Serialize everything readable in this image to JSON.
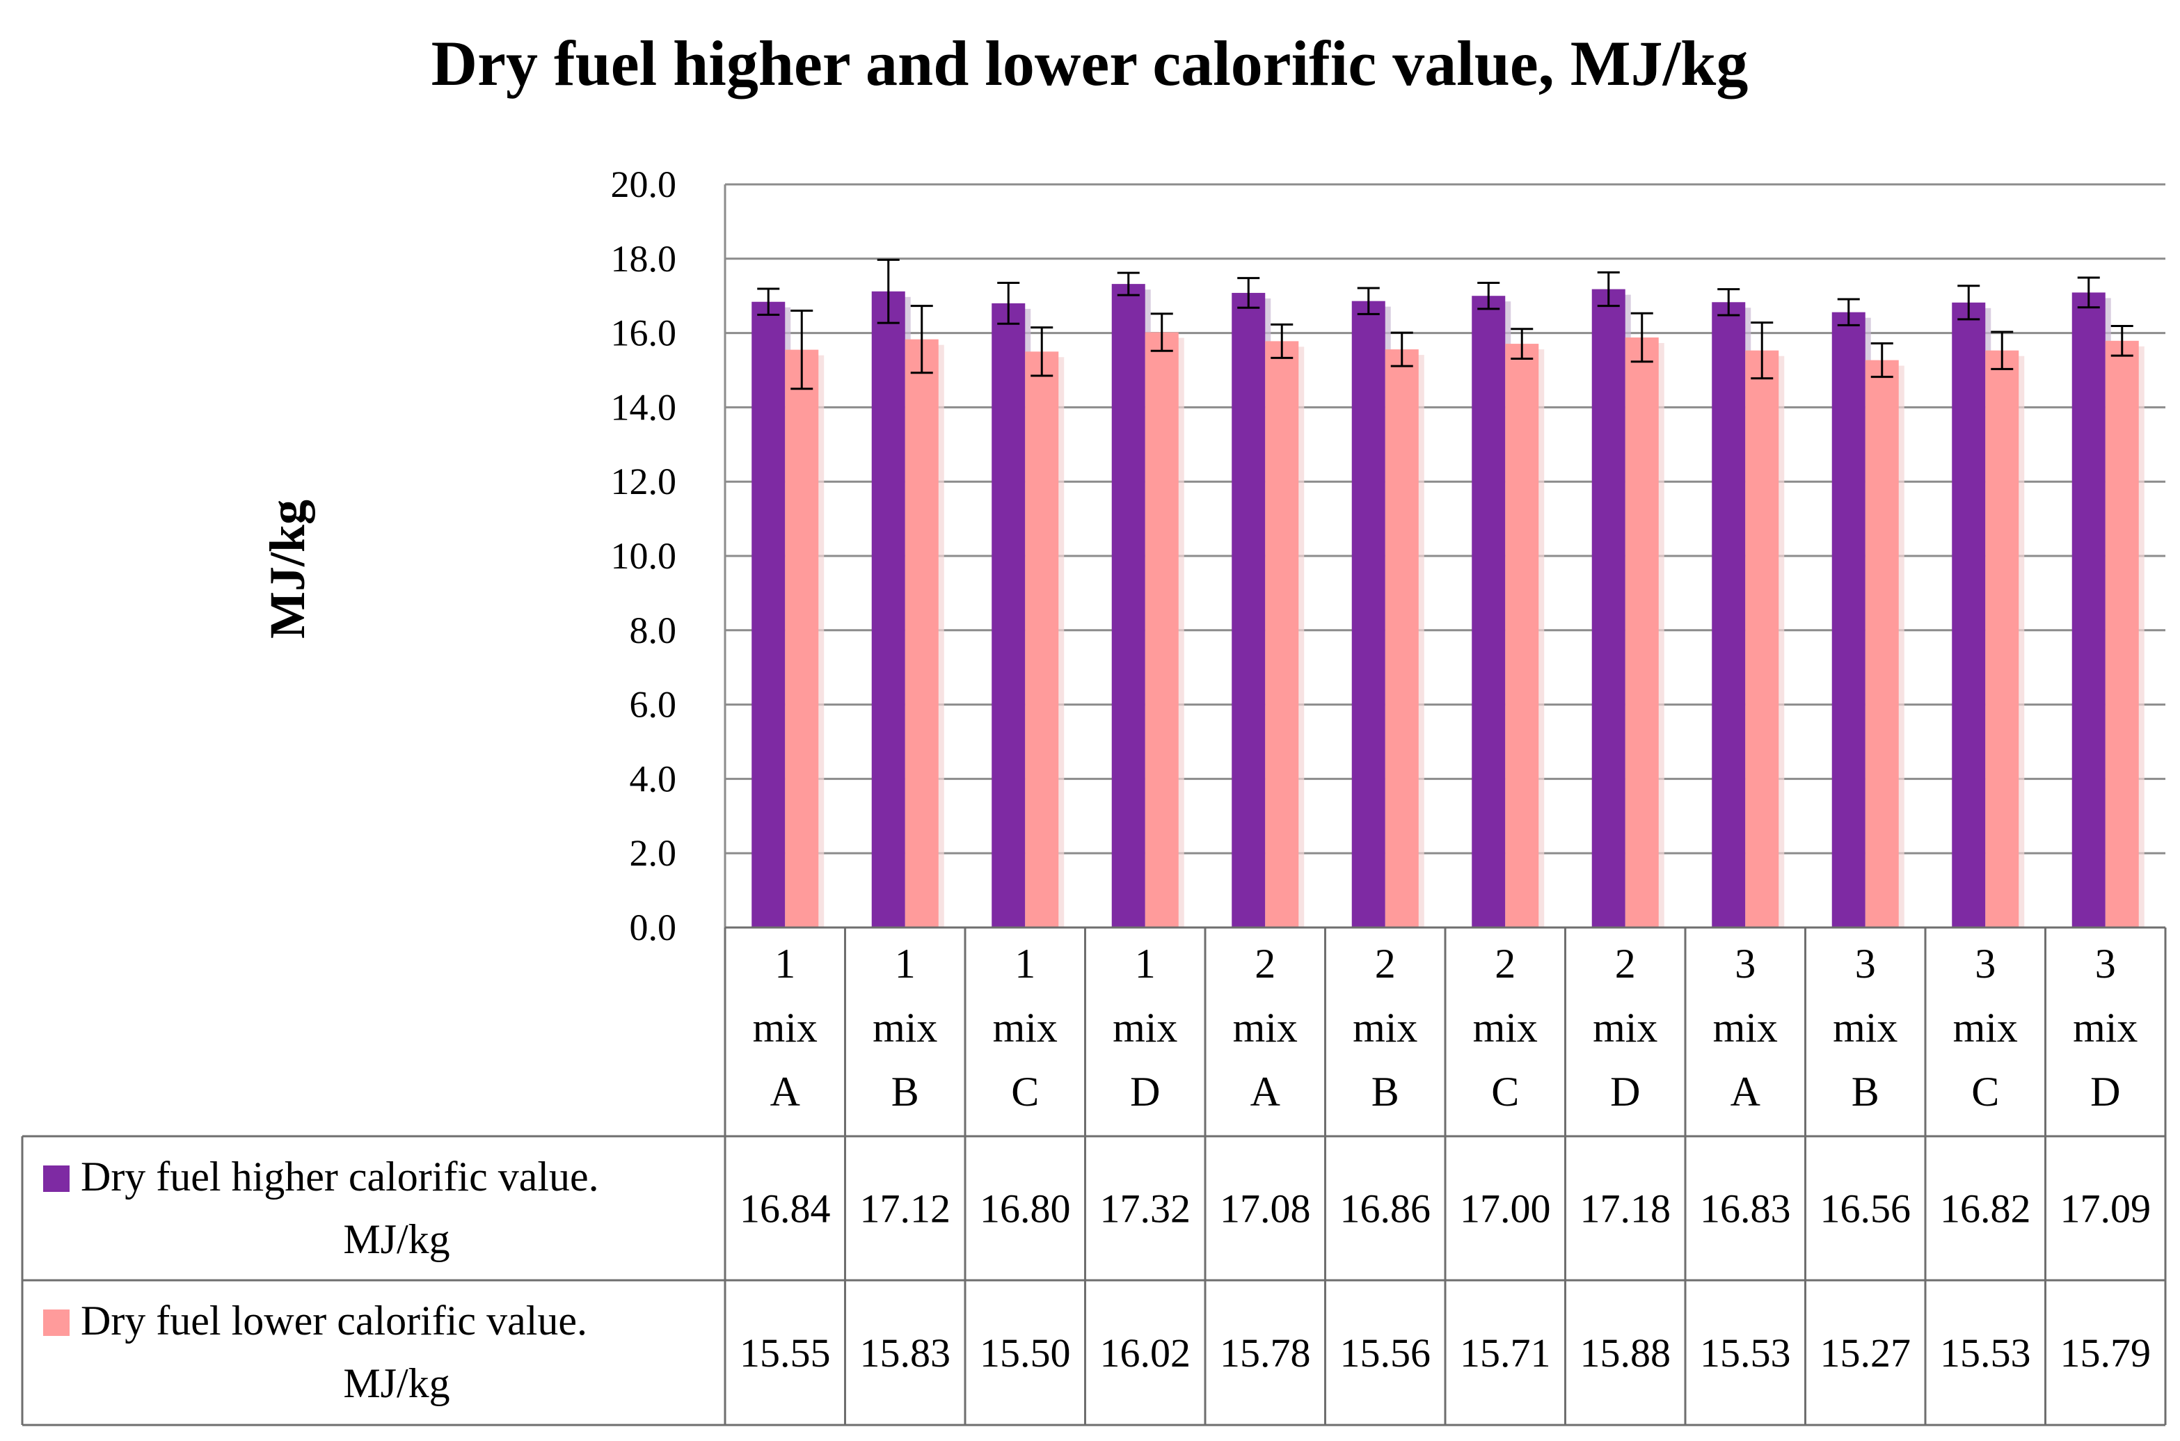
{
  "chart_data": {
    "type": "bar",
    "title": "Dry fuel higher and lower calorific value, MJ/kg",
    "ylabel": "MJ/kg",
    "xlabel": "",
    "ylim": [
      0,
      20
    ],
    "ytick_step": 2,
    "yticks": [
      "0.0",
      "2.0",
      "4.0",
      "6.0",
      "8.0",
      "10.0",
      "12.0",
      "14.0",
      "16.0",
      "18.0",
      "20.0"
    ],
    "grid": true,
    "legend": "data-table",
    "categories": [
      [
        "1",
        "mix",
        "A"
      ],
      [
        "1",
        "mix",
        "B"
      ],
      [
        "1",
        "mix",
        "C"
      ],
      [
        "1",
        "mix",
        "D"
      ],
      [
        "2",
        "mix",
        "A"
      ],
      [
        "2",
        "mix",
        "B"
      ],
      [
        "2",
        "mix",
        "C"
      ],
      [
        "2",
        "mix",
        "D"
      ],
      [
        "3",
        "mix",
        "A"
      ],
      [
        "3",
        "mix",
        "B"
      ],
      [
        "3",
        "mix",
        "C"
      ],
      [
        "3",
        "mix",
        "D"
      ]
    ],
    "series": [
      {
        "name_lines": [
          "Dry fuel higher calorific value.",
          "MJ/kg"
        ],
        "color": "#7E2AA3",
        "values": [
          16.84,
          17.12,
          16.8,
          17.32,
          17.08,
          16.86,
          17.0,
          17.18,
          16.83,
          16.56,
          16.82,
          17.09
        ],
        "labels": [
          "16.84",
          "17.12",
          "16.80",
          "17.32",
          "17.08",
          "16.86",
          "17.00",
          "17.18",
          "16.83",
          "16.56",
          "16.82",
          "17.09"
        ],
        "errors": [
          0.35,
          0.85,
          0.55,
          0.3,
          0.4,
          0.35,
          0.35,
          0.45,
          0.35,
          0.35,
          0.45,
          0.4
        ]
      },
      {
        "name_lines": [
          "Dry fuel lower calorific value.",
          "MJ/kg"
        ],
        "color": "#FF9B9B",
        "values": [
          15.55,
          15.83,
          15.5,
          16.02,
          15.78,
          15.56,
          15.71,
          15.88,
          15.53,
          15.27,
          15.53,
          15.79
        ],
        "labels": [
          "15.55",
          "15.83",
          "15.50",
          "16.02",
          "15.78",
          "15.56",
          "15.71",
          "15.88",
          "15.53",
          "15.27",
          "15.53",
          "15.79"
        ],
        "errors": [
          1.05,
          0.9,
          0.65,
          0.5,
          0.45,
          0.45,
          0.4,
          0.65,
          0.75,
          0.45,
          0.5,
          0.4
        ]
      }
    ]
  }
}
